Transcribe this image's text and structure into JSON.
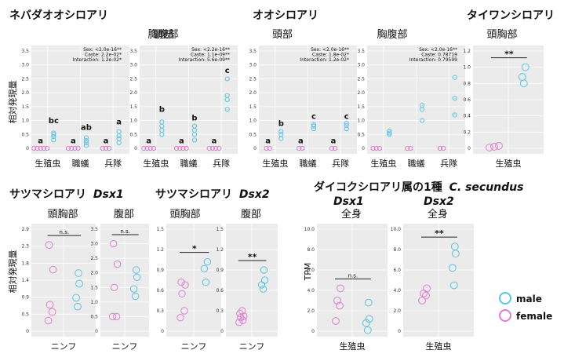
{
  "colors": {
    "male": "#5bc4e6",
    "female": "#e07ed0",
    "panel_bg": "#ebebeb",
    "grid": "#ffffff"
  },
  "titles": {
    "t1": "ネバダオオシロアリ",
    "t2": "オオシロアリ",
    "t3": "タイワンシロアリ",
    "t4": "サツマシロアリ",
    "t4b": "Dsx1",
    "t5": "サツマシロアリ",
    "t5b": "Dsx2",
    "t6": "ダイコクシロアリ属の1種",
    "t6b": "C. secundus",
    "t6c": "Dsx1",
    "t6d": "Dsx2"
  },
  "ylabels": {
    "top": "相対発現量",
    "bottom": "相対発現量",
    "tpm": "TPM"
  },
  "legend": {
    "male": "male",
    "female": "female"
  },
  "chart_data": [
    {
      "type": "scatter",
      "title": "頭部",
      "ylim": [
        0,
        3.5
      ],
      "ticks": [
        "0",
        "0.5",
        "1.0",
        "1.5",
        "2.0",
        "2.5",
        "3.0",
        "3.5"
      ],
      "categories": [
        "生殖虫",
        "職蟻",
        "兵隊"
      ],
      "stats": [
        "Sex:  <2.0e-16**",
        "Caste:  2.2e-02*",
        "Interaction: 1.2e-02*"
      ],
      "letters": [
        {
          "cat": 0,
          "text": "a",
          "y": 0.12
        },
        {
          "cat": 0.38,
          "text": "bc",
          "y": 0.85
        },
        {
          "cat": 1,
          "text": "a",
          "y": 0.12
        },
        {
          "cat": 1.38,
          "text": "ab",
          "y": 0.6
        },
        {
          "cat": 2,
          "text": "a",
          "y": 0.12
        },
        {
          "cat": 2.38,
          "text": "a",
          "y": 0.8
        }
      ],
      "female": [
        [
          0,
          0
        ],
        [
          0,
          0
        ],
        [
          0,
          0
        ],
        [
          0,
          0
        ],
        [
          0,
          0
        ],
        [
          1,
          0
        ],
        [
          1,
          0
        ],
        [
          1,
          0
        ],
        [
          1,
          0
        ],
        [
          2,
          0
        ],
        [
          2,
          0
        ],
        [
          2,
          0
        ]
      ],
      "male": [
        [
          0,
          0.3
        ],
        [
          0,
          0.42
        ],
        [
          0,
          0.5
        ],
        [
          0,
          0.55
        ],
        [
          1,
          0.1
        ],
        [
          1,
          0.2
        ],
        [
          1,
          0.28
        ],
        [
          1,
          0.38
        ],
        [
          2,
          0.2
        ],
        [
          2,
          0.35
        ],
        [
          2,
          0.45
        ],
        [
          2,
          0.6
        ]
      ]
    },
    {
      "type": "scatter",
      "title": "胸腹部",
      "ylim": [
        0,
        3.5
      ],
      "ticks": [
        "0",
        "0.5",
        "1.0",
        "1.5",
        "2.0",
        "2.5",
        "3.0",
        "3.5"
      ],
      "categories": [
        "生殖虫",
        "職蟻",
        "兵隊"
      ],
      "stats": [
        "Sex:  <2.2e-16**",
        "Caste:  1.1e-09**",
        "Interaction: 5.6e-09**"
      ],
      "letters": [
        {
          "cat": 0,
          "text": "a",
          "y": 0.12
        },
        {
          "cat": 0.38,
          "text": "b",
          "y": 1.25
        },
        {
          "cat": 1,
          "text": "a",
          "y": 0.12
        },
        {
          "cat": 1.38,
          "text": "b",
          "y": 0.95
        },
        {
          "cat": 2,
          "text": "a",
          "y": 0.12
        },
        {
          "cat": 2.38,
          "text": "c",
          "y": 2.65
        }
      ],
      "female": [
        [
          0,
          0
        ],
        [
          0,
          0
        ],
        [
          0,
          0
        ],
        [
          0,
          0
        ],
        [
          1,
          0
        ],
        [
          1,
          0
        ],
        [
          1,
          0
        ],
        [
          1,
          0
        ],
        [
          2,
          0
        ],
        [
          2,
          0
        ],
        [
          2,
          0
        ],
        [
          2,
          0
        ]
      ],
      "male": [
        [
          0,
          0.5
        ],
        [
          0,
          0.65
        ],
        [
          0,
          0.8
        ],
        [
          0,
          0.95
        ],
        [
          1,
          0.3
        ],
        [
          1,
          0.5
        ],
        [
          1,
          0.65
        ],
        [
          1,
          0.8
        ],
        [
          2,
          1.4
        ],
        [
          2,
          1.75
        ],
        [
          2,
          1.9
        ],
        [
          2,
          2.5
        ]
      ]
    },
    {
      "type": "scatter",
      "title": "頭部",
      "ylim": [
        0,
        3.5
      ],
      "ticks": [
        "0",
        "0.5",
        "1.0",
        "1.5",
        "2.0",
        "2.5",
        "3.0",
        "3.5"
      ],
      "categories": [
        "生殖虫",
        "職蟻",
        "兵隊"
      ],
      "stats": [
        "Sex:  <2.0e-16**",
        "Caste:  1.8e-02*",
        "Interaction: 1.2e-02*"
      ],
      "letters": [
        {
          "cat": 0,
          "text": "a",
          "y": 0.12
        },
        {
          "cat": 0.38,
          "text": "b",
          "y": 0.75
        },
        {
          "cat": 1,
          "text": "a",
          "y": 0.12
        },
        {
          "cat": 1.38,
          "text": "c",
          "y": 1.0
        },
        {
          "cat": 2,
          "text": "a",
          "y": 0.12
        },
        {
          "cat": 2.38,
          "text": "c",
          "y": 1.0
        }
      ],
      "female": [
        [
          0,
          0
        ],
        [
          0,
          0
        ],
        [
          1,
          0
        ],
        [
          1,
          0
        ],
        [
          2,
          0
        ],
        [
          2,
          0
        ]
      ],
      "male": [
        [
          0,
          0.35
        ],
        [
          0,
          0.5
        ],
        [
          0,
          0.6
        ],
        [
          1,
          0.7
        ],
        [
          1,
          0.8
        ],
        [
          1,
          0.85
        ],
        [
          2,
          0.7
        ],
        [
          2,
          0.82
        ],
        [
          2,
          0.9
        ]
      ]
    },
    {
      "type": "scatter",
      "title": "胸腹部",
      "ylim": [
        0,
        3.5
      ],
      "ticks": [
        "0",
        "0.5",
        "1.0",
        "1.5",
        "2.0",
        "2.5",
        "3.0",
        "3.5"
      ],
      "categories": [
        "生殖虫",
        "職蟻",
        "兵隊"
      ],
      "stats": [
        "Sex:  <2.0e-16**",
        "Caste:  0.78719",
        "Interaction: 0.79599"
      ],
      "letters": [],
      "female": [
        [
          0,
          0
        ],
        [
          0,
          0
        ],
        [
          0,
          0
        ],
        [
          1,
          0
        ],
        [
          1,
          0
        ],
        [
          2,
          0
        ],
        [
          2,
          0
        ]
      ],
      "male": [
        [
          0,
          0.5
        ],
        [
          0,
          0.55
        ],
        [
          0,
          0.62
        ],
        [
          1,
          1.0
        ],
        [
          1,
          1.4
        ],
        [
          1,
          1.55
        ],
        [
          2,
          1.2
        ],
        [
          2,
          1.8
        ],
        [
          2,
          2.55
        ]
      ]
    },
    {
      "type": "scatter",
      "title": "頭胸部",
      "ylim": [
        0,
        1.2
      ],
      "ticks": [
        "0",
        "0.2",
        "0.4",
        "0.6",
        "0.8",
        "1.0",
        "1.2"
      ],
      "categories": [
        "生殖虫"
      ],
      "sig": "**",
      "female": [
        [
          0,
          0.01
        ],
        [
          0,
          0.02
        ],
        [
          0,
          0.03
        ]
      ],
      "male": [
        [
          1,
          0.8
        ],
        [
          1,
          0.88
        ],
        [
          1,
          1.0
        ]
      ]
    },
    {
      "type": "scatter",
      "title": "頭胸部",
      "ylim": [
        0,
        2.9
      ],
      "ticks": [
        "0",
        "0.5",
        "0.9",
        "1.4",
        "1.8",
        "2.3",
        "2.9"
      ],
      "categories": [
        "ニンフ"
      ],
      "sig": "n.s.",
      "female": [
        [
          0,
          0.3
        ],
        [
          0,
          0.55
        ],
        [
          0,
          0.75
        ],
        [
          0,
          1.75
        ],
        [
          0,
          2.45
        ]
      ],
      "male": [
        [
          1,
          0.7
        ],
        [
          1,
          0.95
        ],
        [
          1,
          1.35
        ],
        [
          1,
          1.65
        ]
      ]
    },
    {
      "type": "scatter",
      "title": "腹部",
      "ylim": [
        0,
        3.5
      ],
      "ticks": [
        "0",
        "0.5",
        "1.0",
        "1.5",
        "2.0",
        "2.5",
        "3.0",
        "3.5"
      ],
      "categories": [
        "ニンフ"
      ],
      "sig": "n.s.",
      "female": [
        [
          0,
          0.5
        ],
        [
          0,
          0.5
        ],
        [
          0,
          1.5
        ],
        [
          0,
          2.3
        ],
        [
          0,
          3.0
        ]
      ],
      "male": [
        [
          1,
          1.2
        ],
        [
          1,
          1.45
        ],
        [
          1,
          1.85
        ],
        [
          1,
          2.1
        ]
      ]
    },
    {
      "type": "scatter",
      "title": "頭胸部",
      "ylim": [
        0,
        1.5
      ],
      "ticks": [
        "0",
        "0.3",
        "0.6",
        "0.9",
        "1.2",
        "1.5"
      ],
      "categories": [
        "ニンフ"
      ],
      "sig": "*",
      "female": [
        [
          0,
          0.2
        ],
        [
          0,
          0.3
        ],
        [
          0,
          0.55
        ],
        [
          0,
          0.68
        ],
        [
          0,
          0.72
        ]
      ],
      "male": [
        [
          1,
          0.72
        ],
        [
          1,
          0.92
        ],
        [
          1,
          1.02
        ]
      ]
    },
    {
      "type": "scatter",
      "title": "腹部",
      "ylim": [
        0,
        1.5
      ],
      "ticks": [
        "0",
        "0.3",
        "0.6",
        "0.9",
        "1.2",
        "1.5"
      ],
      "categories": [
        "ニンフ"
      ],
      "sig": "**",
      "female": [
        [
          0,
          0.13
        ],
        [
          0,
          0.16
        ],
        [
          0,
          0.2
        ],
        [
          0,
          0.22
        ],
        [
          0,
          0.26
        ],
        [
          0,
          0.3
        ]
      ],
      "male": [
        [
          1,
          0.62
        ],
        [
          1,
          0.68
        ],
        [
          1,
          0.75
        ],
        [
          1,
          0.9
        ]
      ]
    },
    {
      "type": "scatter",
      "title": "全身",
      "ylim": [
        0,
        10
      ],
      "ticks": [
        "0",
        "2.0",
        "4.0",
        "6.0",
        "8.0",
        "10.0"
      ],
      "categories": [
        "生殖虫"
      ],
      "sig": "n.s.",
      "female": [
        [
          0,
          1.0
        ],
        [
          0,
          2.5
        ],
        [
          0,
          3.0
        ],
        [
          0,
          4.2
        ]
      ],
      "male": [
        [
          1,
          0.1
        ],
        [
          1,
          0.8
        ],
        [
          1,
          1.2
        ],
        [
          1,
          2.8
        ]
      ]
    },
    {
      "type": "scatter",
      "title": "全身",
      "ylim": [
        0,
        10
      ],
      "ticks": [
        "0",
        "2.0",
        "4.0",
        "6.0",
        "8.0",
        "10.0"
      ],
      "categories": [
        "生殖虫"
      ],
      "sig": "**",
      "female": [
        [
          0,
          3.0
        ],
        [
          0,
          3.5
        ],
        [
          0,
          3.7
        ],
        [
          0,
          4.2
        ]
      ],
      "male": [
        [
          1,
          4.5
        ],
        [
          1,
          6.2
        ],
        [
          1,
          7.6
        ],
        [
          1,
          8.3
        ]
      ]
    }
  ]
}
